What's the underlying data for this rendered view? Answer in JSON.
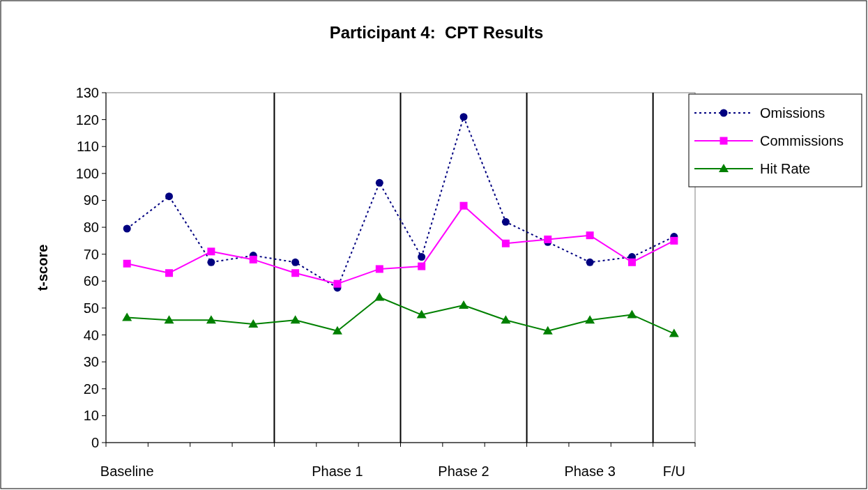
{
  "chart_data": {
    "type": "line",
    "title": "Participant 4:  CPT Results",
    "ylabel": "t-score",
    "categories": [
      "Baseline",
      null,
      null,
      null,
      null,
      "Phase 1",
      null,
      null,
      "Phase 2",
      null,
      null,
      "Phase 3",
      null,
      "F/U"
    ],
    "series": [
      {
        "name": "Omissions",
        "color": "#000080",
        "marker": "circle",
        "line_style": "dotted",
        "values": [
          79.5,
          91.5,
          67,
          69.5,
          67,
          57.5,
          96.5,
          69,
          121,
          82,
          74.5,
          67,
          69,
          76.5
        ]
      },
      {
        "name": "Commissions",
        "color": "#ff00ff",
        "marker": "square",
        "line_style": "solid",
        "values": [
          66.5,
          63,
          71,
          68,
          63,
          59,
          64.5,
          65.5,
          88,
          74,
          75.5,
          77,
          67,
          75
        ]
      },
      {
        "name": "Hit Rate",
        "color": "#008000",
        "marker": "triangle",
        "line_style": "solid",
        "values": [
          46.5,
          45.5,
          45.5,
          44,
          45.5,
          41.5,
          54,
          47.5,
          51,
          45.5,
          41.5,
          45.5,
          47.5,
          40.5
        ]
      }
    ],
    "ylim": [
      0,
      130
    ],
    "yticks": [
      0,
      10,
      20,
      30,
      40,
      50,
      60,
      70,
      80,
      90,
      100,
      110,
      120,
      130
    ],
    "grid": false,
    "legend": "top right"
  }
}
